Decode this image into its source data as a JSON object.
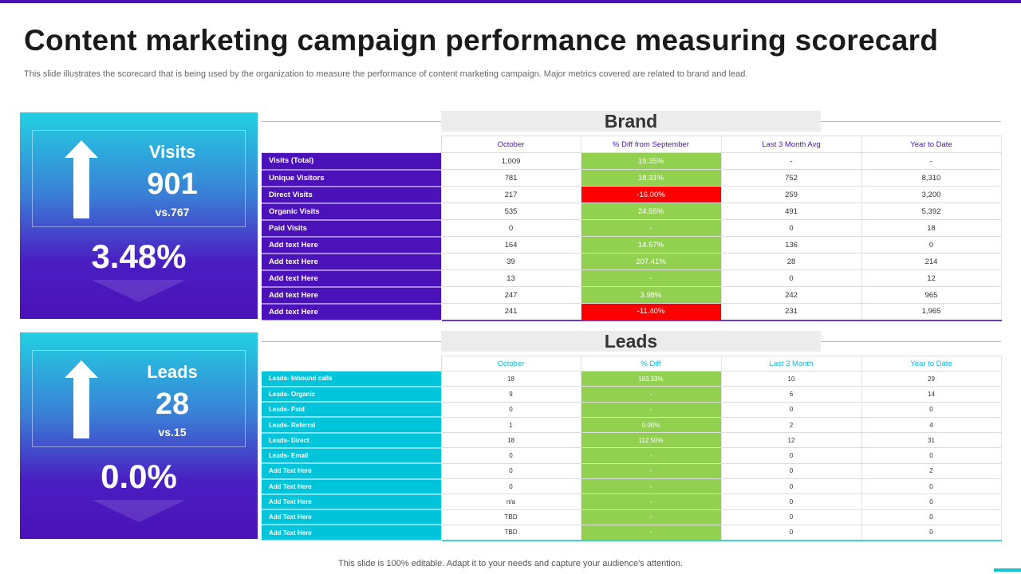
{
  "title": "Content marketing campaign performance measuring scorecard",
  "subtitle": "This slide illustrates the scorecard that is being used by the organization to measure the performance of content marketing campaign. Major metrics covered are related to brand and lead.",
  "footer": "This slide is 100% editable. Adapt it to your needs and capture your audience's attention.",
  "colors": {
    "brand": "#4a12b8",
    "leads": "#00c4da",
    "positive": "#92d050",
    "negative": "#ff0000"
  },
  "cards": [
    {
      "name": "Visits",
      "value": "901",
      "vs": "vs.767",
      "change": "3.48%",
      "icon": "arrow-up-icon"
    },
    {
      "name": "Leads",
      "value": "28",
      "vs": "vs.15",
      "change": "0.0%",
      "icon": "arrow-up-icon"
    }
  ],
  "brand": {
    "title": "Brand",
    "headers": [
      "",
      "October",
      "% Diff from September",
      "Last 3 Month Avg",
      "Year to Date"
    ],
    "rows": [
      {
        "label": "Visits (Total)",
        "october": "1,009",
        "diff": "19.35%",
        "status": "g",
        "avg": "-",
        "ytd": "-"
      },
      {
        "label": "Unique Visitors",
        "october": "781",
        "diff": "18.31%",
        "status": "g",
        "avg": "752",
        "ytd": "8,310"
      },
      {
        "label": "Direct Visits",
        "october": "217",
        "diff": "-16.00%",
        "status": "r",
        "avg": "259",
        "ytd": "3,200"
      },
      {
        "label": "Organic Visits",
        "october": "535",
        "diff": "24.55%",
        "status": "g",
        "avg": "491",
        "ytd": "5,392"
      },
      {
        "label": "Paid Visits",
        "october": "0",
        "diff": "-",
        "status": "g",
        "avg": "0",
        "ytd": "18"
      },
      {
        "label": "Add text Here",
        "october": "164",
        "diff": "14.57%",
        "status": "g",
        "avg": "136",
        "ytd": "0"
      },
      {
        "label": "Add text Here",
        "october": "39",
        "diff": "207.41%",
        "status": "g",
        "avg": "28",
        "ytd": "214"
      },
      {
        "label": "Add text Here",
        "october": "13",
        "diff": "-",
        "status": "g",
        "avg": "0",
        "ytd": "12"
      },
      {
        "label": "Add text Here",
        "october": "247",
        "diff": "3.98%",
        "status": "g",
        "avg": "242",
        "ytd": "965"
      },
      {
        "label": "Add text Here",
        "october": "241",
        "diff": "-11.40%",
        "status": "r",
        "avg": "231",
        "ytd": "1,965"
      }
    ]
  },
  "leads": {
    "title": "Leads",
    "headers": [
      "",
      "October",
      "% Diff",
      "Last 3 Month",
      "Year to Date"
    ],
    "rows": [
      {
        "label": "Leads- Inbound calls",
        "october": "18",
        "diff": "183.33%",
        "status": "g",
        "avg": "10",
        "ytd": "29"
      },
      {
        "label": "Leads- Organic",
        "october": "9",
        "diff": "-",
        "status": "g",
        "avg": "6",
        "ytd": "14"
      },
      {
        "label": "Leads- Paid",
        "october": "0",
        "diff": "-",
        "status": "g",
        "avg": "0",
        "ytd": "0"
      },
      {
        "label": "Leads- Referral",
        "october": "1",
        "diff": "0.00%",
        "status": "g",
        "avg": "2",
        "ytd": "4"
      },
      {
        "label": "Leads- Direct",
        "october": "18",
        "diff": "112.50%",
        "status": "g",
        "avg": "12",
        "ytd": "31"
      },
      {
        "label": "Leads- Email",
        "october": "0",
        "diff": "-",
        "status": "g",
        "avg": "0",
        "ytd": "0"
      },
      {
        "label": "Add Text Here",
        "october": "0",
        "diff": "-",
        "status": "g",
        "avg": "0",
        "ytd": "2"
      },
      {
        "label": "Add Text Here",
        "october": "0",
        "diff": "-",
        "status": "g",
        "avg": "0",
        "ytd": "0"
      },
      {
        "label": "Add Text Here",
        "october": "n/a",
        "diff": "-",
        "status": "g",
        "avg": "0",
        "ytd": "0"
      },
      {
        "label": "Add Text Here",
        "october": "TBD",
        "diff": "-",
        "status": "g",
        "avg": "0",
        "ytd": "0"
      },
      {
        "label": "Add Text Here",
        "october": "TBD",
        "diff": "-",
        "status": "g",
        "avg": "0",
        "ytd": "0"
      }
    ]
  }
}
